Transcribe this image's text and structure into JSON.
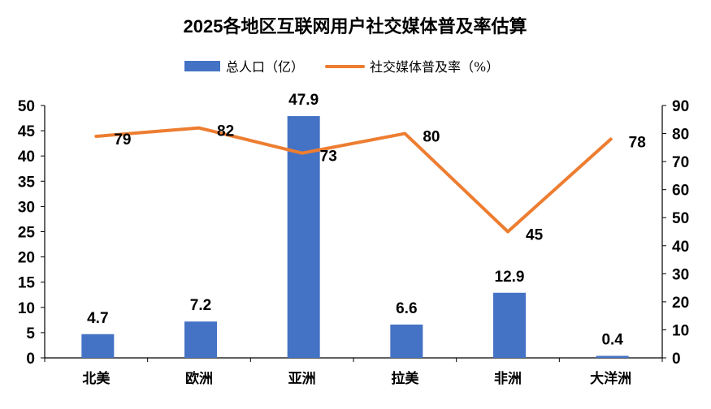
{
  "chart_data": {
    "type": "bar+line",
    "title": "2025各地区互联网用户社交媒体普及率估算",
    "categories": [
      "北美",
      "欧洲",
      "亚洲",
      "拉美",
      "非洲",
      "大洋洲"
    ],
    "series": [
      {
        "name": "总人口（亿）",
        "type": "bar",
        "axis": "left",
        "color": "#4472C4",
        "values": [
          4.7,
          7.2,
          47.9,
          6.6,
          12.9,
          0.4
        ]
      },
      {
        "name": "社交媒体普及率（%）",
        "type": "line",
        "axis": "right",
        "color": "#ED7D31",
        "values": [
          79,
          82,
          73,
          80,
          45,
          78
        ]
      }
    ],
    "y_left": {
      "range": [
        0,
        50
      ],
      "ticks": [
        0,
        5,
        10,
        15,
        20,
        25,
        30,
        35,
        40,
        45,
        50
      ]
    },
    "y_right": {
      "range": [
        0,
        90
      ],
      "ticks": [
        0,
        10,
        20,
        30,
        40,
        50,
        60,
        70,
        80,
        90
      ]
    },
    "grid": false,
    "legend": "top"
  }
}
